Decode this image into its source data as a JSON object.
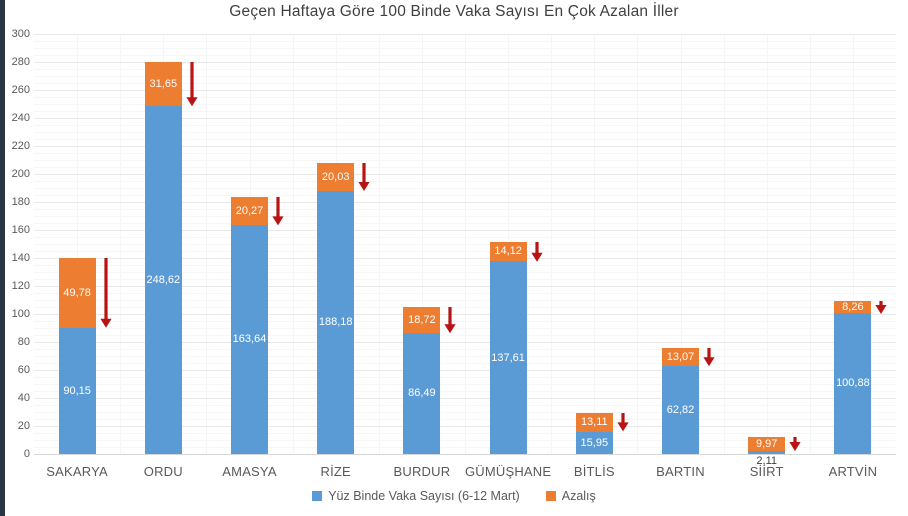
{
  "title": "Geçen Haftaya Göre 100 Binde Vaka Sayısı En Çok Azalan İller",
  "legend": {
    "series1_label": "Yüz Binde Vaka Sayısı (6-12 Mart)",
    "series2_label": "Azalış"
  },
  "chart_data": {
    "type": "bar",
    "stacked": true,
    "title": "Geçen Haftaya Göre 100 Binde Vaka Sayısı En Çok Azalan İller",
    "categories": [
      "SAKARYA",
      "ORDU",
      "AMASYA",
      "RİZE",
      "BURDUR",
      "GÜMÜŞHANE",
      "BİTLİS",
      "BARTIN",
      "SİİRT",
      "ARTVİN"
    ],
    "series": [
      {
        "name": "Yüz Binde Vaka Sayısı (6-12 Mart)",
        "color": "#5B9BD5",
        "values": [
          90.15,
          248.62,
          163.64,
          188.18,
          86.49,
          137.61,
          15.95,
          62.82,
          2.11,
          100.88
        ],
        "value_labels": [
          "90,15",
          "248,62",
          "163,64",
          "188,18",
          "86,49",
          "137,61",
          "15,95",
          "62,82",
          "2,11",
          "100,88"
        ]
      },
      {
        "name": "Azalış",
        "color": "#ED7D31",
        "values": [
          49.78,
          31.65,
          20.27,
          20.03,
          18.72,
          14.12,
          13.11,
          13.07,
          9.97,
          8.26
        ],
        "value_labels": [
          "49,78",
          "31,65",
          "20,27",
          "20,03",
          "18,72",
          "14,12",
          "13,11",
          "13,07",
          "9,97",
          "8,26"
        ]
      }
    ],
    "ylim": [
      0,
      300
    ],
    "ytick_step": 20,
    "yticks": [
      "0",
      "20",
      "40",
      "60",
      "80",
      "100",
      "120",
      "140",
      "160",
      "180",
      "200",
      "220",
      "240",
      "260",
      "280",
      "300"
    ],
    "grid": true,
    "legend_position": "bottom",
    "annotations": {
      "type": "decrease-arrow",
      "description": "dark red downward arrow beside the decrease segment of every bar",
      "color": "#B81414"
    }
  },
  "colors": {
    "background": "#FFFFFF",
    "bar_blue": "#5B9BD5",
    "bar_orange": "#ED7D31",
    "arrow_red": "#B81414",
    "axis_text": "#595959",
    "title_text": "#3F3F3F",
    "gridline_major": "#E8E8E8",
    "gridline_minor": "#F6F6F6",
    "axis_line": "#D6D6D6",
    "left_stripe": "#2A3645"
  }
}
